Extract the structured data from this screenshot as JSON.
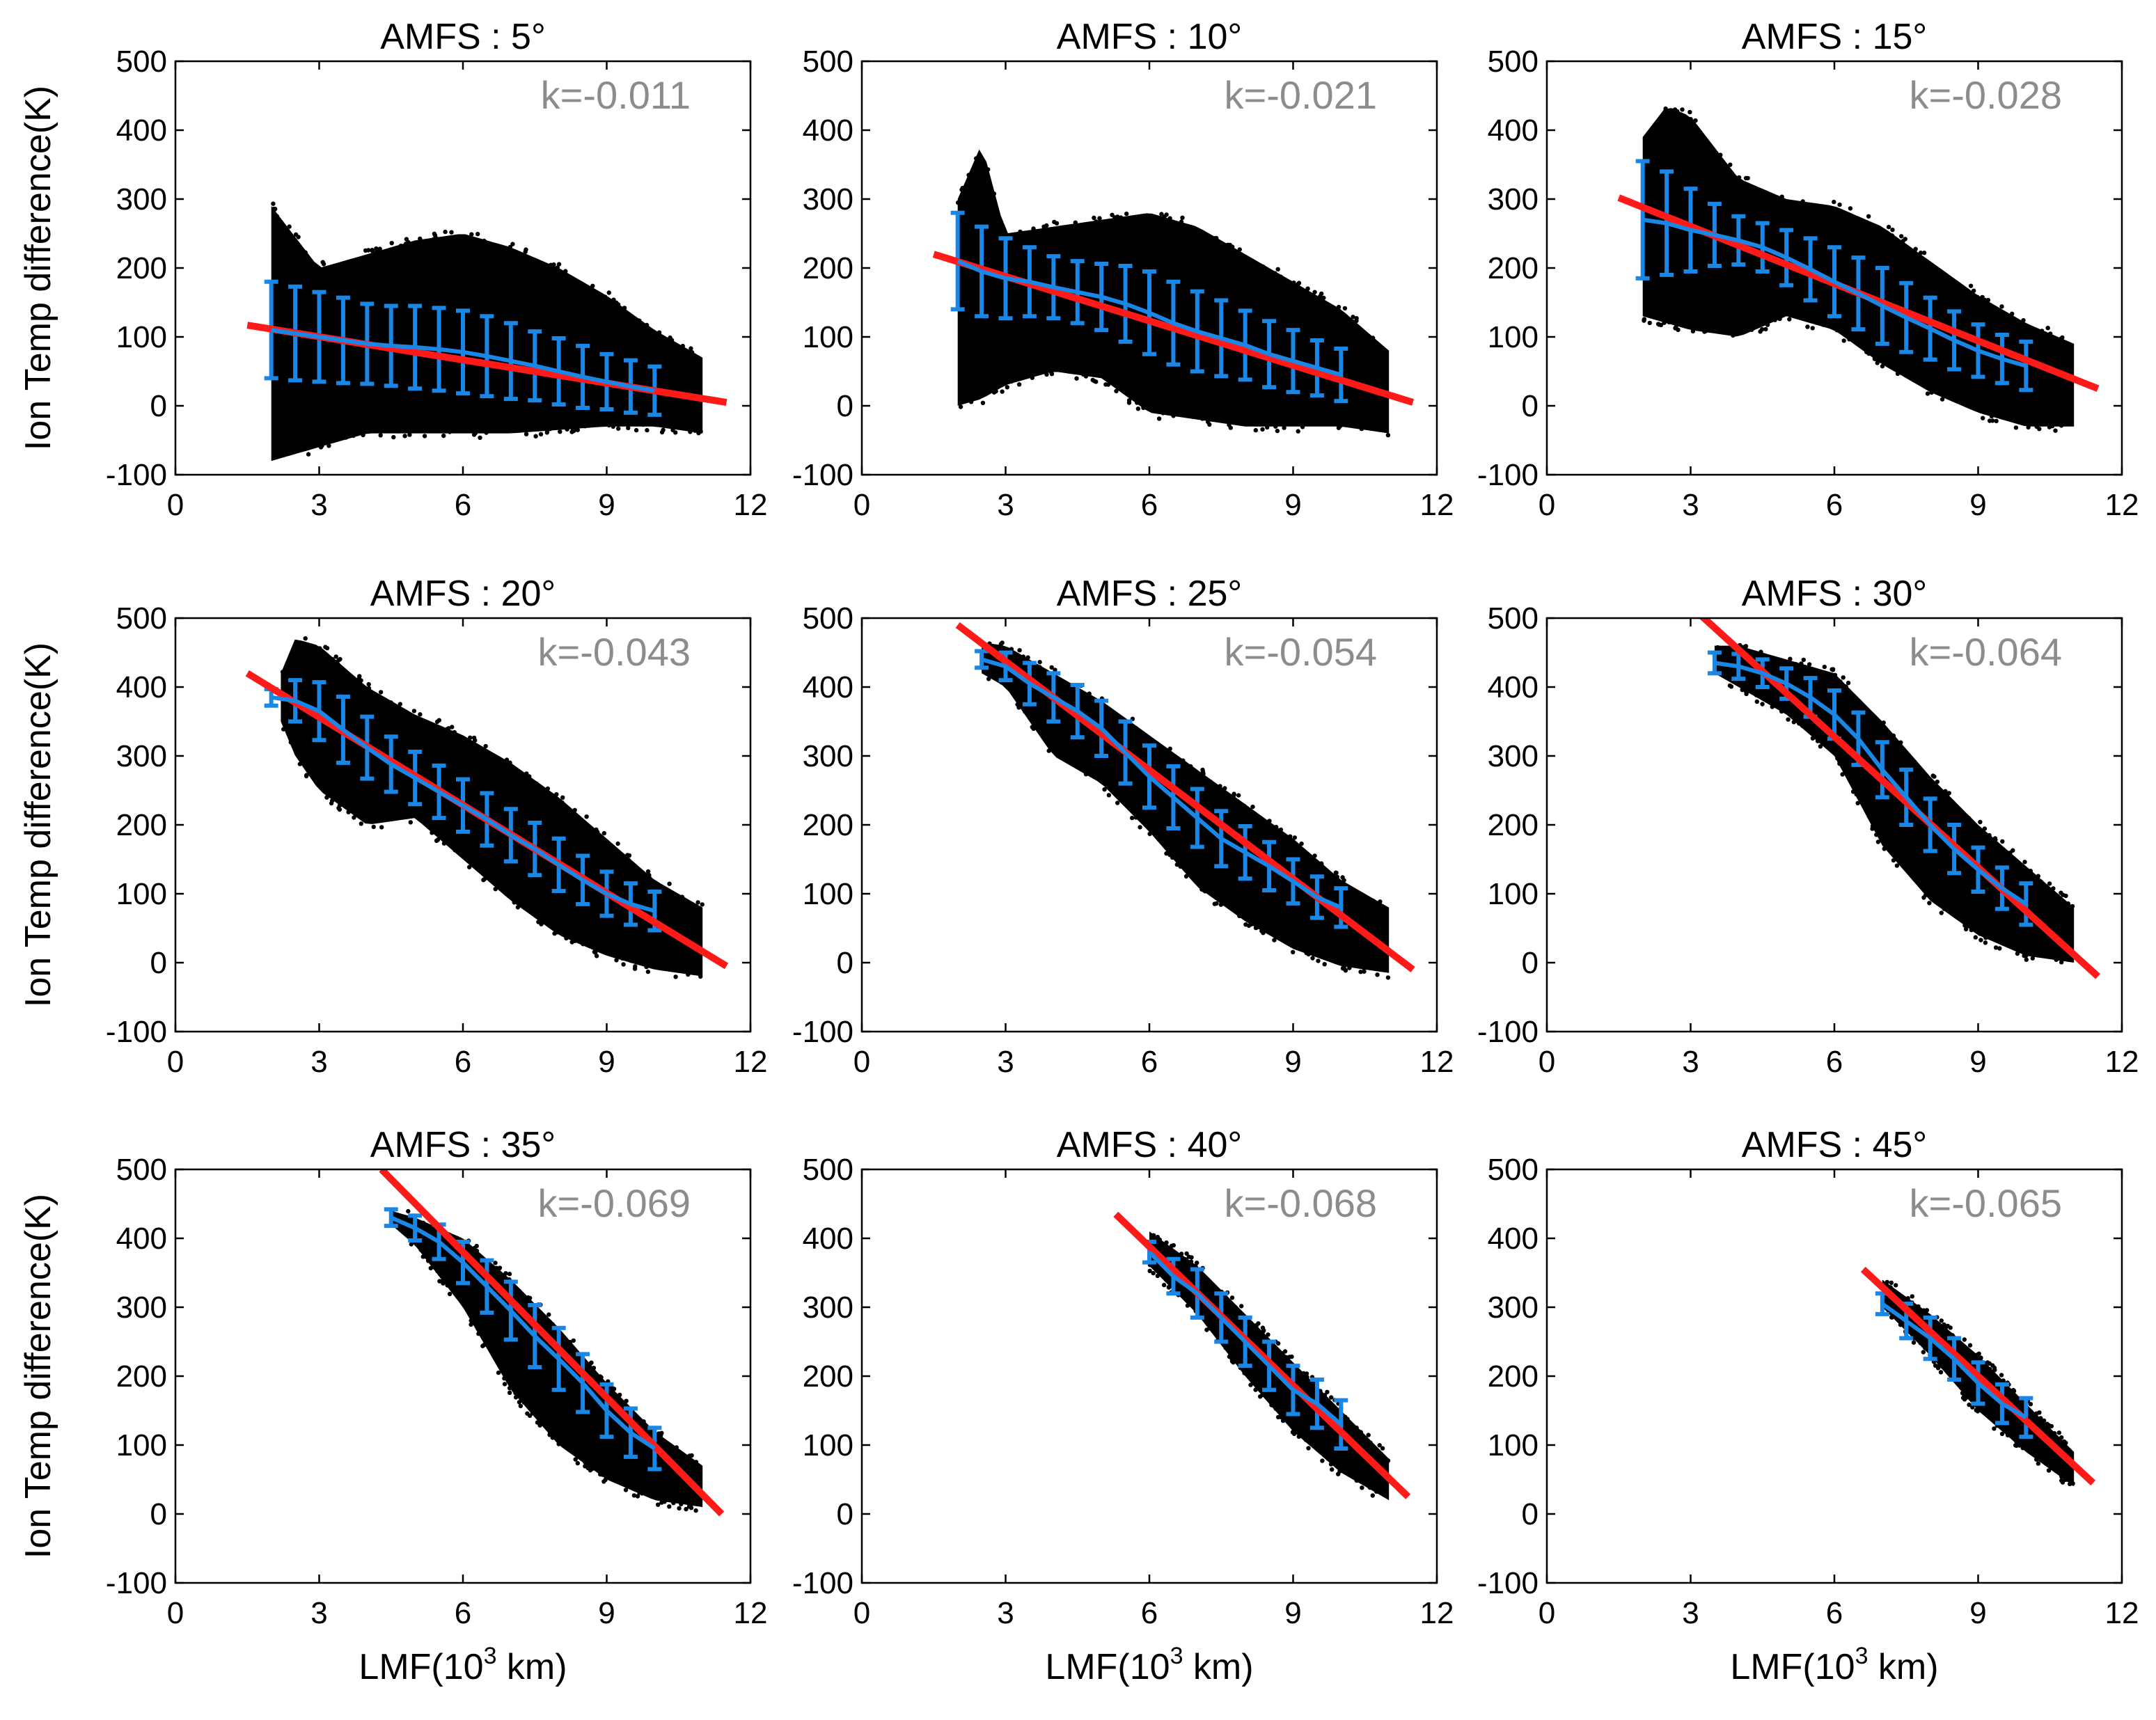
{
  "figure": {
    "x_axis_title_prefix": "LMF(10",
    "x_axis_title_exp": "3",
    "x_axis_title_suffix": " km)",
    "y_axis_title": "Ion Temp difference(K)"
  },
  "colors": {
    "scatter": "#000000",
    "fit_line": "#ff1a1a",
    "binned_mean": "#1a86e6",
    "k_text": "#8c8c8c",
    "axes": "#000000"
  },
  "chart_data": [
    {
      "type": "scatter",
      "title": "AMFS : 5°",
      "k_label": "k=-0.011",
      "xlim": [
        0,
        12
      ],
      "ylim": [
        -100,
        500
      ],
      "xticks": [
        "0",
        "3",
        "6",
        "9",
        "12"
      ],
      "yticks": [
        "-100",
        "0",
        "100",
        "200",
        "300",
        "400",
        "500"
      ],
      "xlabel": "LMF(10^3 km)",
      "ylabel": "Ion Temp difference(K)",
      "scatter_envelope": {
        "x": [
          2,
          3,
          4,
          5,
          6,
          7,
          8,
          9,
          10,
          11
        ],
        "upper": [
          290,
          200,
          220,
          240,
          250,
          230,
          200,
          160,
          110,
          70
        ],
        "lower": [
          -80,
          -60,
          -40,
          -40,
          -40,
          -40,
          -35,
          -30,
          -30,
          -40
        ]
      },
      "fit_line": {
        "x": [
          1.5,
          11.5
        ],
        "y": [
          117,
          5
        ]
      },
      "binned_mean": {
        "x": [
          2,
          2.5,
          3,
          3.5,
          4,
          4.5,
          5,
          5.5,
          6,
          6.5,
          7,
          7.5,
          8,
          8.5,
          9,
          9.5,
          10
        ],
        "y": [
          110,
          105,
          100,
          95,
          90,
          87,
          85,
          82,
          78,
          72,
          65,
          58,
          50,
          42,
          35,
          28,
          22
        ],
        "err": [
          70,
          68,
          65,
          62,
          58,
          58,
          60,
          60,
          60,
          58,
          55,
          50,
          48,
          45,
          40,
          38,
          35
        ]
      }
    },
    {
      "type": "scatter",
      "title": "AMFS : 10°",
      "k_label": "k=-0.021",
      "xlim": [
        0,
        12
      ],
      "ylim": [
        -100,
        500
      ],
      "xticks": [
        "0",
        "3",
        "6",
        "9",
        "12"
      ],
      "yticks": [
        "-100",
        "0",
        "100",
        "200",
        "300",
        "400",
        "500"
      ],
      "xlabel": "LMF(10^3 km)",
      "ylabel": "Ion Temp difference(K)",
      "scatter_envelope": {
        "x": [
          2,
          2.5,
          3,
          4,
          5,
          6,
          7,
          8,
          9,
          10,
          11
        ],
        "upper": [
          300,
          380,
          250,
          260,
          270,
          280,
          260,
          220,
          180,
          140,
          80
        ],
        "lower": [
          0,
          10,
          30,
          50,
          40,
          -10,
          -20,
          -30,
          -30,
          -30,
          -40
        ]
      },
      "fit_line": {
        "x": [
          1.5,
          11.5
        ],
        "y": [
          220,
          5
        ]
      },
      "binned_mean": {
        "x": [
          2,
          2.5,
          3,
          3.5,
          4,
          4.5,
          5,
          5.5,
          6,
          6.5,
          7,
          7.5,
          8,
          8.5,
          9,
          9.5,
          10
        ],
        "y": [
          210,
          195,
          185,
          180,
          172,
          165,
          158,
          148,
          135,
          120,
          108,
          98,
          88,
          75,
          65,
          55,
          45
        ],
        "err": [
          70,
          65,
          58,
          50,
          45,
          45,
          48,
          55,
          60,
          60,
          58,
          55,
          50,
          48,
          45,
          40,
          38
        ]
      }
    },
    {
      "type": "scatter",
      "title": "AMFS : 15°",
      "k_label": "k=-0.028",
      "xlim": [
        0,
        12
      ],
      "ylim": [
        -100,
        500
      ],
      "xticks": [
        "0",
        "3",
        "6",
        "9",
        "12"
      ],
      "yticks": [
        "-100",
        "0",
        "100",
        "200",
        "300",
        "400",
        "500"
      ],
      "xlabel": "LMF(10^3 km)",
      "ylabel": "Ion Temp difference(K)",
      "scatter_envelope": {
        "x": [
          2,
          2.5,
          3,
          4,
          5,
          6,
          7,
          8,
          9,
          10,
          11
        ],
        "upper": [
          390,
          435,
          420,
          330,
          300,
          290,
          260,
          210,
          160,
          120,
          90
        ],
        "lower": [
          130,
          120,
          110,
          100,
          130,
          110,
          60,
          20,
          -10,
          -30,
          -30
        ]
      },
      "fit_line": {
        "x": [
          1.5,
          11.5
        ],
        "y": [
          302,
          25
        ]
      },
      "binned_mean": {
        "x": [
          2,
          2.5,
          3,
          3.5,
          4,
          4.5,
          5,
          5.5,
          6,
          6.5,
          7,
          7.5,
          8,
          8.5,
          9,
          9.5,
          10
        ],
        "y": [
          270,
          265,
          255,
          248,
          240,
          230,
          215,
          198,
          180,
          163,
          145,
          128,
          112,
          95,
          80,
          68,
          58
        ],
        "err": [
          85,
          75,
          60,
          45,
          35,
          35,
          40,
          45,
          50,
          52,
          55,
          50,
          45,
          42,
          38,
          35,
          35
        ]
      }
    },
    {
      "type": "scatter",
      "title": "AMFS : 20°",
      "k_label": "k=-0.043",
      "xlim": [
        0,
        12
      ],
      "ylim": [
        -100,
        500
      ],
      "xticks": [
        "0",
        "3",
        "6",
        "9",
        "12"
      ],
      "yticks": [
        "-100",
        "0",
        "100",
        "200",
        "300",
        "400",
        "500"
      ],
      "xlabel": "LMF(10^3 km)",
      "ylabel": "Ion Temp difference(K)",
      "scatter_envelope": {
        "x": [
          2.2,
          2.5,
          3,
          4,
          5,
          6,
          7,
          8,
          9,
          10,
          11
        ],
        "upper": [
          420,
          470,
          460,
          400,
          360,
          330,
          290,
          240,
          180,
          120,
          80
        ],
        "lower": [
          350,
          300,
          250,
          200,
          210,
          150,
          90,
          40,
          10,
          -10,
          -20
        ]
      },
      "fit_line": {
        "x": [
          1.5,
          11.5
        ],
        "y": [
          420,
          -5
        ]
      },
      "binned_mean": {
        "x": [
          2,
          2.5,
          3,
          3.5,
          4,
          4.5,
          5,
          5.5,
          6,
          6.5,
          7,
          7.5,
          8,
          8.5,
          9,
          9.5,
          10
        ],
        "y": [
          385,
          380,
          365,
          338,
          312,
          288,
          268,
          248,
          228,
          208,
          185,
          165,
          142,
          120,
          100,
          85,
          75
        ],
        "err": [
          12,
          30,
          42,
          48,
          45,
          40,
          38,
          38,
          38,
          38,
          38,
          38,
          38,
          35,
          32,
          30,
          28
        ]
      }
    },
    {
      "type": "scatter",
      "title": "AMFS : 25°",
      "k_label": "k=-0.054",
      "xlim": [
        0,
        12
      ],
      "ylim": [
        -100,
        500
      ],
      "xticks": [
        "0",
        "3",
        "6",
        "9",
        "12"
      ],
      "yticks": [
        "-100",
        "0",
        "100",
        "200",
        "300",
        "400",
        "500"
      ],
      "xlabel": "LMF(10^3 km)",
      "ylabel": "Ion Temp difference(K)",
      "scatter_envelope": {
        "x": [
          2.5,
          3,
          4,
          5,
          6,
          7,
          8,
          9,
          10,
          11
        ],
        "upper": [
          465,
          460,
          420,
          380,
          330,
          280,
          230,
          180,
          120,
          80
        ],
        "lower": [
          420,
          400,
          300,
          260,
          190,
          110,
          60,
          20,
          -5,
          -15
        ]
      },
      "fit_line": {
        "x": [
          2,
          11.5
        ],
        "y": [
          490,
          -10
        ]
      },
      "binned_mean": {
        "x": [
          2.5,
          3,
          3.5,
          4,
          4.5,
          5,
          5.5,
          6,
          6.5,
          7,
          7.5,
          8,
          8.5,
          9,
          9.5,
          10
        ],
        "y": [
          440,
          430,
          405,
          385,
          365,
          340,
          305,
          270,
          240,
          210,
          180,
          160,
          140,
          118,
          95,
          80
        ],
        "err": [
          12,
          20,
          30,
          35,
          38,
          40,
          45,
          45,
          45,
          42,
          40,
          38,
          35,
          32,
          30,
          28
        ]
      }
    },
    {
      "type": "scatter",
      "title": "AMFS : 30°",
      "k_label": "k=-0.064",
      "xlim": [
        0,
        12
      ],
      "ylim": [
        -100,
        500
      ],
      "xticks": [
        "0",
        "3",
        "6",
        "9",
        "12"
      ],
      "yticks": [
        "-100",
        "0",
        "100",
        "200",
        "300",
        "400",
        "500"
      ],
      "xlabel": "LMF(10^3 km)",
      "ylabel": "Ion Temp difference(K)",
      "scatter_envelope": {
        "x": [
          3.5,
          4,
          5,
          6,
          7,
          8,
          9,
          10,
          11
        ],
        "upper": [
          460,
          460,
          440,
          420,
          350,
          270,
          200,
          140,
          80
        ],
        "lower": [
          420,
          400,
          360,
          300,
          170,
          90,
          40,
          10,
          0
        ]
      },
      "fit_line": {
        "x": [
          3.2,
          11.5
        ],
        "y": [
          505,
          -20
        ]
      },
      "binned_mean": {
        "x": [
          3.5,
          4,
          4.5,
          5,
          5.5,
          6,
          6.5,
          7,
          7.5,
          8,
          8.5,
          9,
          9.5,
          10
        ],
        "y": [
          435,
          430,
          420,
          405,
          385,
          360,
          325,
          280,
          240,
          200,
          165,
          135,
          108,
          85
        ],
        "err": [
          15,
          18,
          20,
          22,
          28,
          35,
          38,
          40,
          40,
          38,
          35,
          32,
          30,
          30
        ]
      }
    },
    {
      "type": "scatter",
      "title": "AMFS : 35°",
      "k_label": "k=-0.069",
      "xlim": [
        0,
        12
      ],
      "ylim": [
        -100,
        500
      ],
      "xticks": [
        "0",
        "3",
        "6",
        "9",
        "12"
      ],
      "yticks": [
        "-100",
        "0",
        "100",
        "200",
        "300",
        "400",
        "500"
      ],
      "xlabel": "LMF(10^3 km)",
      "ylabel": "Ion Temp difference(K)",
      "scatter_envelope": {
        "x": [
          4.5,
          5,
          6,
          7,
          8,
          9,
          10,
          11
        ],
        "upper": [
          440,
          430,
          400,
          340,
          270,
          190,
          120,
          70
        ],
        "lower": [
          420,
          390,
          300,
          180,
          100,
          50,
          20,
          10
        ]
      },
      "fit_line": {
        "x": [
          4.3,
          11.4
        ],
        "y": [
          500,
          0
        ]
      },
      "binned_mean": {
        "x": [
          4.5,
          5,
          5.5,
          6,
          6.5,
          7,
          7.5,
          8,
          8.5,
          9,
          9.5,
          10
        ],
        "y": [
          430,
          415,
          395,
          365,
          330,
          295,
          258,
          225,
          190,
          150,
          118,
          95
        ],
        "err": [
          12,
          18,
          25,
          30,
          38,
          42,
          45,
          45,
          42,
          38,
          35,
          30
        ]
      }
    },
    {
      "type": "scatter",
      "title": "AMFS : 40°",
      "k_label": "k=-0.068",
      "xlim": [
        0,
        12
      ],
      "ylim": [
        -100,
        500
      ],
      "xticks": [
        "0",
        "3",
        "6",
        "9",
        "12"
      ],
      "yticks": [
        "-100",
        "0",
        "100",
        "200",
        "300",
        "400",
        "500"
      ],
      "xlabel": "LMF(10^3 km)",
      "ylabel": "Ion Temp difference(K)",
      "scatter_envelope": {
        "x": [
          6,
          7,
          8,
          9,
          10,
          11
        ],
        "upper": [
          410,
          360,
          290,
          220,
          150,
          80
        ],
        "lower": [
          360,
          290,
          200,
          120,
          60,
          20
        ]
      },
      "fit_line": {
        "x": [
          5.3,
          11.4
        ],
        "y": [
          435,
          25
        ]
      },
      "binned_mean": {
        "x": [
          6,
          6.5,
          7,
          7.5,
          8,
          8.5,
          9,
          9.5,
          10
        ],
        "y": [
          380,
          345,
          320,
          285,
          250,
          215,
          180,
          160,
          130
        ],
        "err": [
          15,
          25,
          35,
          35,
          35,
          35,
          35,
          35,
          35
        ]
      }
    },
    {
      "type": "scatter",
      "title": "AMFS : 45°",
      "k_label": "k=-0.065",
      "xlim": [
        0,
        12
      ],
      "ylim": [
        -100,
        500
      ],
      "xticks": [
        "0",
        "3",
        "6",
        "9",
        "12"
      ],
      "yticks": [
        "-100",
        "0",
        "100",
        "200",
        "300",
        "400",
        "500"
      ],
      "xlabel": "LMF(10^3 km)",
      "ylabel": "Ion Temp difference(K)",
      "scatter_envelope": {
        "x": [
          7,
          8,
          9,
          10,
          11
        ],
        "upper": [
          340,
          290,
          230,
          160,
          90
        ],
        "lower": [
          300,
          230,
          150,
          90,
          40
        ]
      },
      "fit_line": {
        "x": [
          6.6,
          11.4
        ],
        "y": [
          355,
          45
        ]
      },
      "binned_mean": {
        "x": [
          7,
          7.5,
          8,
          8.5,
          9,
          9.5,
          10
        ],
        "y": [
          305,
          280,
          255,
          225,
          190,
          160,
          140
        ],
        "err": [
          15,
          25,
          30,
          30,
          30,
          28,
          28
        ]
      }
    }
  ]
}
